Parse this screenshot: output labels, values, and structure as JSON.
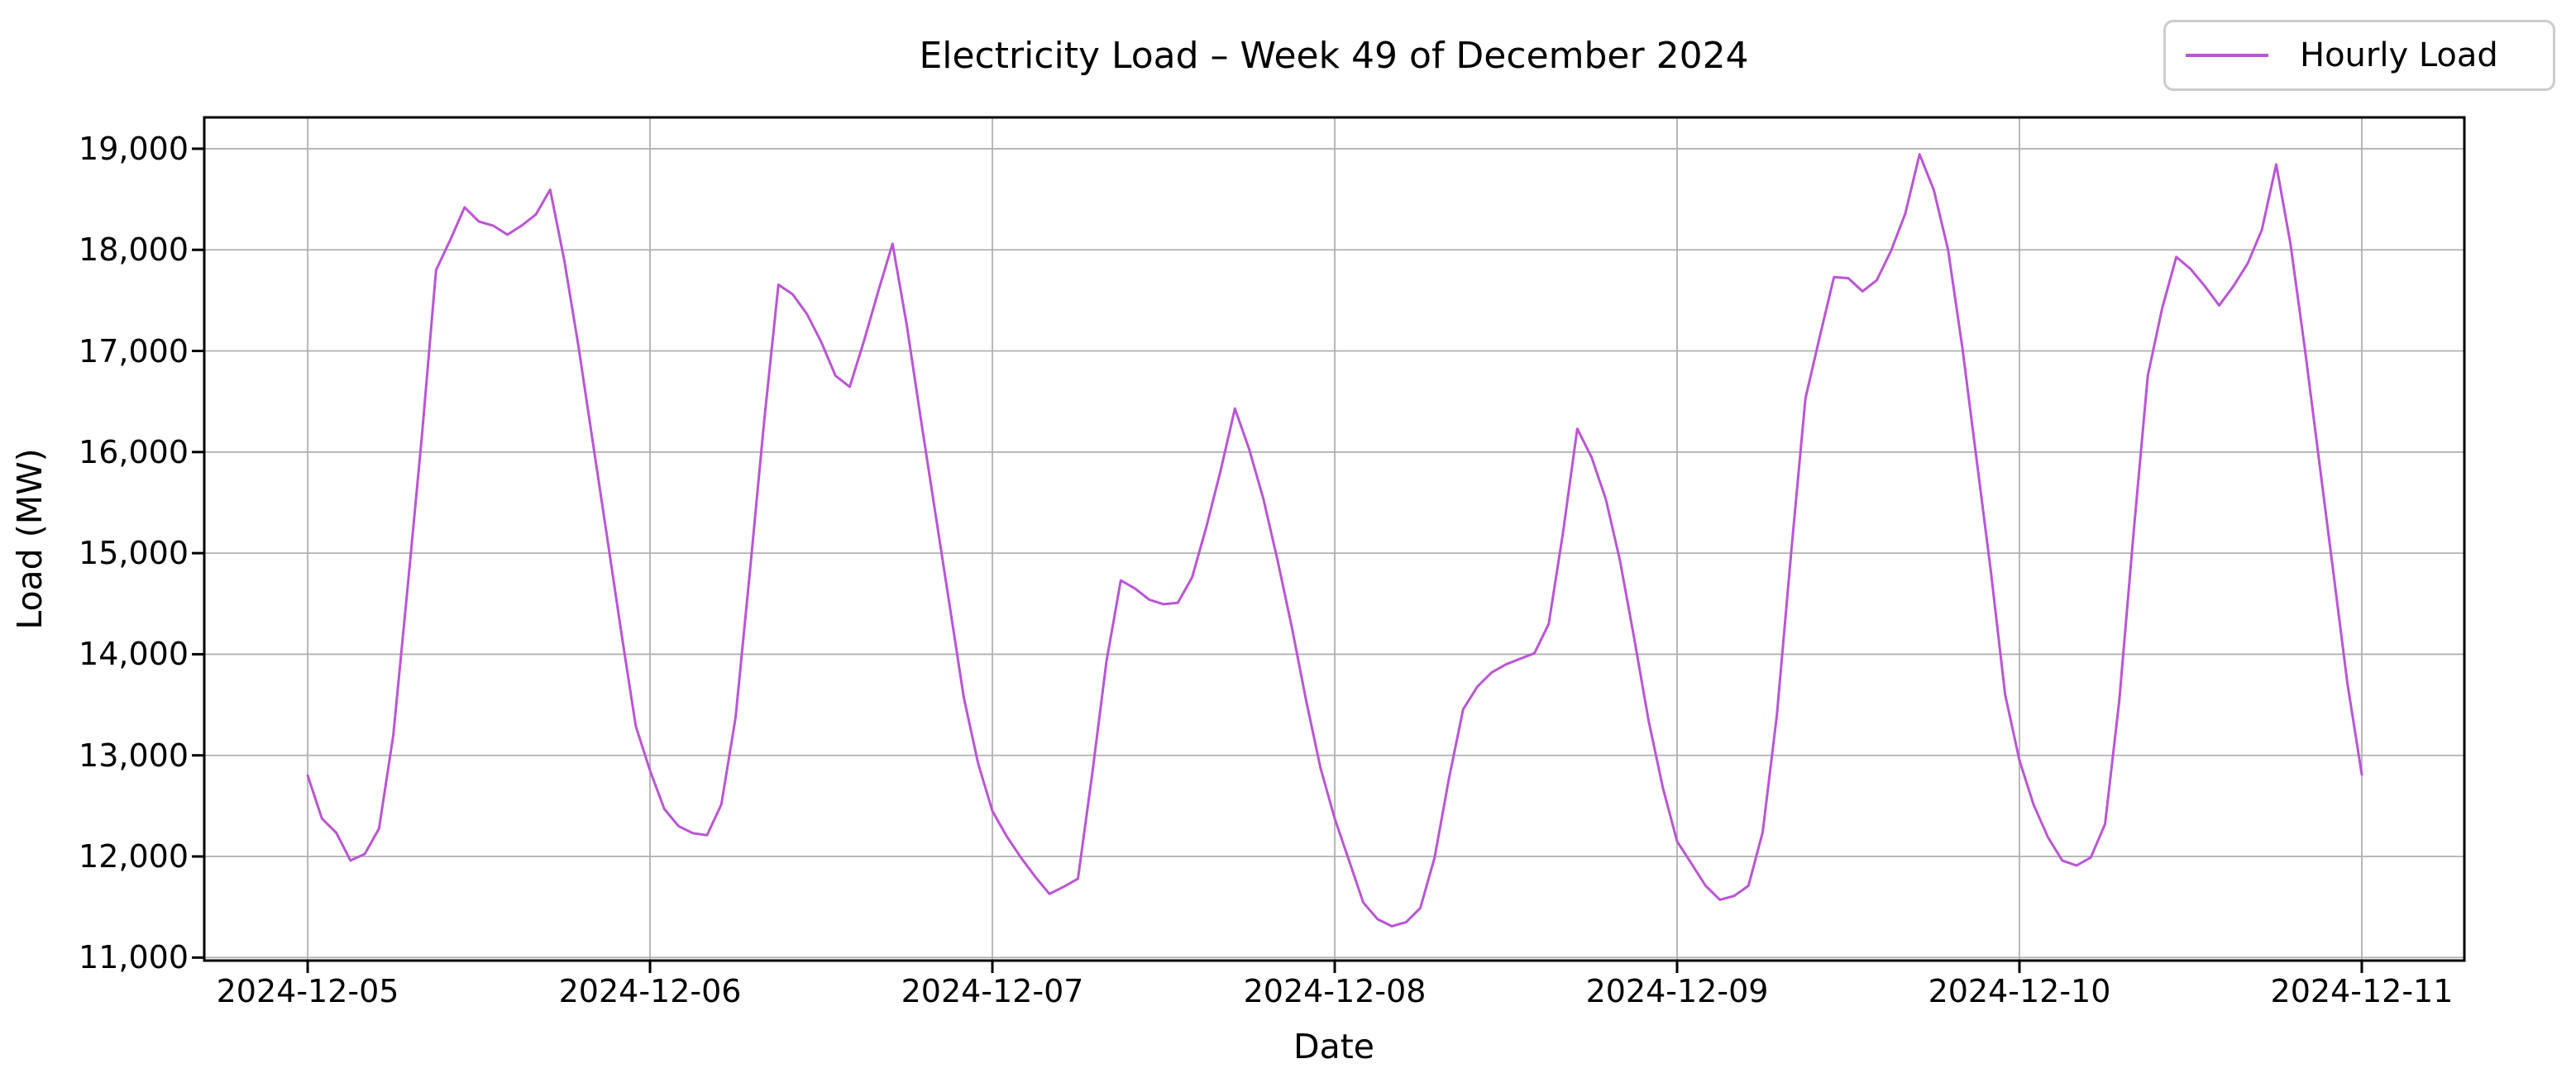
{
  "figure": {
    "title": "Electricity Load – Week 49 of December 2024",
    "xlabel": "Date",
    "ylabel": "Load (MW)",
    "legend": {
      "label": "Hourly Load",
      "position": "upper right"
    }
  },
  "chart_data": {
    "type": "line",
    "title": "Electricity Load – Week 49 of December 2024",
    "xlabel": "Date",
    "ylabel": "Load (MW)",
    "grid": true,
    "legend_position": "upper right",
    "x_start": "2024-12-05 00:00",
    "x_interval_hours": 1,
    "x_tick_labels": [
      "2024-12-05",
      "2024-12-06",
      "2024-12-07",
      "2024-12-08",
      "2024-12-09",
      "2024-12-10",
      "2024-12-11"
    ],
    "x_tick_hours": [
      0,
      24,
      48,
      72,
      96,
      120,
      144
    ],
    "y_ticks": [
      11000,
      12000,
      13000,
      14000,
      15000,
      16000,
      17000,
      18000,
      19000
    ],
    "y_tick_labels": [
      "11,000",
      "12,000",
      "13,000",
      "14,000",
      "15,000",
      "16,000",
      "17,000",
      "18,000",
      "19,000"
    ],
    "ylim": [
      10970,
      19310
    ],
    "xlim_hours": [
      -7.25,
      151.19
    ],
    "colors": {
      "line": "#BA55D3",
      "grid": "#b0b0b0",
      "spine": "#000000",
      "legend_border": "#cccccc",
      "text": "#000000"
    },
    "series": [
      {
        "name": "Hourly Load",
        "color": "#BA55D3",
        "values": [
          12800,
          12375,
          12235,
          11960,
          12025,
          12275,
          13200,
          14650,
          16150,
          17800,
          18100,
          18420,
          18280,
          18240,
          18150,
          18240,
          18350,
          18595,
          17890,
          17030,
          16090,
          15150,
          14205,
          13290,
          12850,
          12470,
          12300,
          12230,
          12210,
          12515,
          13375,
          14815,
          16300,
          17655,
          17560,
          17365,
          17090,
          16755,
          16645,
          17100,
          17590,
          18060,
          17255,
          16310,
          15400,
          14485,
          13570,
          12920,
          12450,
          12200,
          11990,
          11800,
          11630,
          11700,
          11780,
          12820,
          13930,
          14730,
          14650,
          14540,
          14495,
          14510,
          14760,
          15260,
          15815,
          16430,
          16030,
          15535,
          14925,
          14260,
          13540,
          12875,
          12375,
          11960,
          11545,
          11380,
          11310,
          11350,
          11490,
          11990,
          12765,
          13455,
          13680,
          13820,
          13900,
          13955,
          14010,
          14300,
          15200,
          16230,
          15950,
          15535,
          14925,
          14150,
          13345,
          12680,
          12150,
          11930,
          11710,
          11572,
          11610,
          11710,
          12240,
          13400,
          15010,
          16530,
          17140,
          17730,
          17720,
          17590,
          17700,
          17990,
          18360,
          18945,
          18590,
          18000,
          17030,
          15925,
          14815,
          13600,
          12950,
          12510,
          12190,
          11960,
          11910,
          11990,
          12320,
          13540,
          15200,
          16755,
          17420,
          17930,
          17810,
          17640,
          17450,
          17640,
          17865,
          18200,
          18845,
          18060,
          17030,
          15925,
          14815,
          13705,
          12810
        ]
      }
    ]
  }
}
